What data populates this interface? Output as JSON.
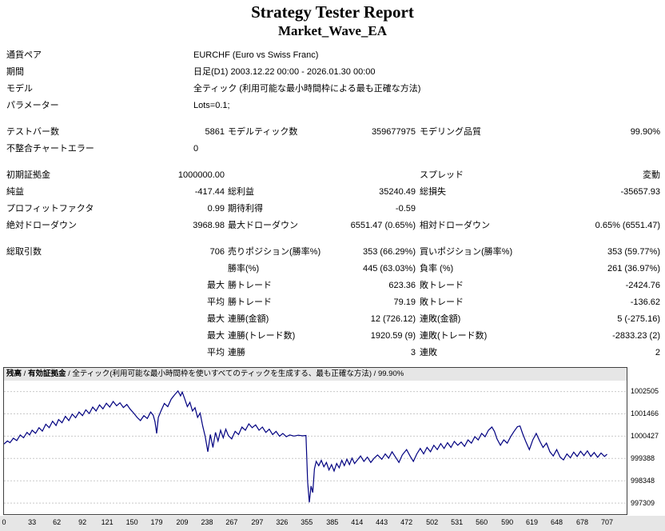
{
  "report": {
    "title": "Strategy Tester Report",
    "subtitle": "Market_Wave_EA",
    "rows": [
      {
        "cells": [
          {
            "s": "l1",
            "t": "通貨ペア"
          },
          {
            "s": "wide",
            "t": "EURCHF (Euro vs Swiss Franc)"
          }
        ]
      },
      {
        "cells": [
          {
            "s": "l1",
            "t": "期間"
          },
          {
            "s": "wide",
            "t": "日足(D1) 2003.12.22 00:00 - 2026.01.30 00:00"
          }
        ]
      },
      {
        "cells": [
          {
            "s": "l1",
            "t": "モデル"
          },
          {
            "s": "wide",
            "t": "全ティック (利用可能な最小時間枠による最も正確な方法)"
          }
        ]
      },
      {
        "cells": [
          {
            "s": "l1",
            "t": "パラメーター"
          },
          {
            "s": "wide",
            "t": "Lots=0.1;"
          }
        ],
        "gap_after": true
      },
      {
        "cells": [
          {
            "s": "l1",
            "t": "テストバー数"
          },
          {
            "s": "v1",
            "t": "5861"
          },
          {
            "s": "l2",
            "t": "モデルティック数"
          },
          {
            "s": "v2",
            "t": "359677975"
          },
          {
            "s": "l3",
            "t": "モデリング品質"
          },
          {
            "s": "v3",
            "t": "99.90%"
          }
        ]
      },
      {
        "cells": [
          {
            "s": "l1",
            "t": "不整合チャートエラー"
          },
          {
            "s": "wide",
            "t": "0"
          }
        ],
        "gap_after": true
      },
      {
        "cells": [
          {
            "s": "l1",
            "t": "初期証拠金"
          },
          {
            "s": "v1",
            "t": "1000000.00"
          },
          {
            "s": "l3",
            "t": "スプレッド"
          },
          {
            "s": "v3",
            "t": "変動"
          }
        ]
      },
      {
        "cells": [
          {
            "s": "l1",
            "t": "純益"
          },
          {
            "s": "v1",
            "t": "-417.44"
          },
          {
            "s": "l2",
            "t": "総利益"
          },
          {
            "s": "v2",
            "t": "35240.49"
          },
          {
            "s": "l3",
            "t": "総損失"
          },
          {
            "s": "v3",
            "t": "-35657.93"
          }
        ]
      },
      {
        "cells": [
          {
            "s": "l1",
            "t": "プロフィットファクタ"
          },
          {
            "s": "v1",
            "t": "0.99"
          },
          {
            "s": "l2",
            "t": "期待利得"
          },
          {
            "s": "v2",
            "t": "-0.59"
          }
        ]
      },
      {
        "cells": [
          {
            "s": "l1",
            "t": "絶対ドローダウン"
          },
          {
            "s": "v1",
            "t": "3968.98"
          },
          {
            "s": "l2",
            "t": "最大ドローダウン"
          },
          {
            "s": "v2",
            "t": "6551.47 (0.65%)"
          },
          {
            "s": "l3",
            "t": "相対ドローダウン"
          },
          {
            "s": "v3",
            "t": "0.65% (6551.47)"
          }
        ],
        "gap_after": true
      },
      {
        "cells": [
          {
            "s": "l1",
            "t": "総取引数"
          },
          {
            "s": "v1",
            "t": "706"
          },
          {
            "s": "l2",
            "t": "売りポジション(勝率%)"
          },
          {
            "s": "v2",
            "t": "353 (66.29%)"
          },
          {
            "s": "l3",
            "t": "買いポジション(勝率%)"
          },
          {
            "s": "v3",
            "t": "353 (59.77%)"
          }
        ]
      },
      {
        "cells": [
          {
            "s": "l2",
            "t": "勝率(%)"
          },
          {
            "s": "v2",
            "t": "445 (63.03%)"
          },
          {
            "s": "l3",
            "t": "負率 (%)"
          },
          {
            "s": "v3",
            "t": "261 (36.97%)"
          }
        ]
      },
      {
        "cells": [
          {
            "s": "v1",
            "t": "最大"
          },
          {
            "s": "l2",
            "t": "勝トレード"
          },
          {
            "s": "v2",
            "t": "623.36"
          },
          {
            "s": "l3",
            "t": "敗トレード"
          },
          {
            "s": "v3",
            "t": "-2424.76"
          }
        ]
      },
      {
        "cells": [
          {
            "s": "v1",
            "t": "平均"
          },
          {
            "s": "l2",
            "t": "勝トレード"
          },
          {
            "s": "v2",
            "t": "79.19"
          },
          {
            "s": "l3",
            "t": "敗トレード"
          },
          {
            "s": "v3",
            "t": "-136.62"
          }
        ]
      },
      {
        "cells": [
          {
            "s": "v1",
            "t": "最大"
          },
          {
            "s": "l2",
            "t": "連勝(金額)"
          },
          {
            "s": "v2",
            "t": "12 (726.12)"
          },
          {
            "s": "l3",
            "t": "連敗(金額)"
          },
          {
            "s": "v3",
            "t": "5 (-275.16)"
          }
        ]
      },
      {
        "cells": [
          {
            "s": "v1",
            "t": "最大"
          },
          {
            "s": "l2",
            "t": "連勝(トレード数)"
          },
          {
            "s": "v2",
            "t": "1920.59 (9)"
          },
          {
            "s": "l3",
            "t": "連敗(トレード数)"
          },
          {
            "s": "v3",
            "t": "-2833.23 (2)"
          }
        ]
      },
      {
        "cells": [
          {
            "s": "v1",
            "t": "平均"
          },
          {
            "s": "l2",
            "t": "連勝"
          },
          {
            "s": "v2",
            "t": "3"
          },
          {
            "s": "l3",
            "t": "連敗"
          },
          {
            "s": "v3",
            "t": "2"
          }
        ]
      }
    ]
  },
  "chart_data": {
    "type": "line",
    "title": "",
    "xlabel": "",
    "ylabel": "",
    "legend": {
      "balance": "残高",
      "equity": "有効証拠金",
      "method": "全ティック(利用可能な最小時間枠を使いすべてのティックを生成する、最も正確な方法)",
      "quality": "99.90%",
      "sep": " / "
    },
    "colors": {
      "balance_line": "#000080",
      "balance_label": "#000080",
      "equity_label": "#007f00",
      "grid": "#c9c9c9",
      "frame": "#404040",
      "strip_bg": "#e6e6e6"
    },
    "xlim": [
      0,
      730
    ],
    "ylim": [
      996790,
      1003010
    ],
    "x_ticks": [
      0,
      33,
      62,
      92,
      121,
      150,
      179,
      209,
      238,
      267,
      297,
      326,
      355,
      385,
      414,
      443,
      472,
      502,
      531,
      560,
      590,
      619,
      648,
      678,
      707
    ],
    "y_ticks": [
      1002505,
      1001466,
      1000427,
      999388,
      998348,
      997309
    ],
    "series": [
      {
        "name": "残高",
        "color": "#000080",
        "points": [
          [
            0,
            1000060
          ],
          [
            4,
            1000200
          ],
          [
            7,
            1000120
          ],
          [
            11,
            1000330
          ],
          [
            15,
            1000220
          ],
          [
            19,
            1000480
          ],
          [
            23,
            1000350
          ],
          [
            27,
            1000600
          ],
          [
            30,
            1000480
          ],
          [
            33,
            1000700
          ],
          [
            37,
            1000560
          ],
          [
            41,
            1000820
          ],
          [
            45,
            1000660
          ],
          [
            49,
            1000980
          ],
          [
            53,
            1000820
          ],
          [
            57,
            1001120
          ],
          [
            61,
            1000920
          ],
          [
            64,
            1001200
          ],
          [
            68,
            1001050
          ],
          [
            72,
            1001350
          ],
          [
            76,
            1001150
          ],
          [
            80,
            1001450
          ],
          [
            84,
            1001280
          ],
          [
            88,
            1001550
          ],
          [
            92,
            1001380
          ],
          [
            96,
            1001650
          ],
          [
            100,
            1001480
          ],
          [
            104,
            1001780
          ],
          [
            108,
            1001600
          ],
          [
            112,
            1001880
          ],
          [
            116,
            1001700
          ],
          [
            120,
            1001960
          ],
          [
            124,
            1001780
          ],
          [
            128,
            1002040
          ],
          [
            132,
            1001840
          ],
          [
            136,
            1001980
          ],
          [
            140,
            1001760
          ],
          [
            144,
            1001900
          ],
          [
            148,
            1001680
          ],
          [
            152,
            1001500
          ],
          [
            156,
            1001300
          ],
          [
            160,
            1001150
          ],
          [
            164,
            1001380
          ],
          [
            168,
            1001250
          ],
          [
            172,
            1001550
          ],
          [
            175,
            1001400
          ],
          [
            177,
            1001100
          ],
          [
            179,
            1000550
          ],
          [
            181,
            1001300
          ],
          [
            184,
            1001600
          ],
          [
            188,
            1001950
          ],
          [
            192,
            1001800
          ],
          [
            196,
            1002150
          ],
          [
            200,
            1002350
          ],
          [
            204,
            1002530
          ],
          [
            207,
            1002300
          ],
          [
            209,
            1002480
          ],
          [
            212,
            1002150
          ],
          [
            215,
            1001800
          ],
          [
            218,
            1002000
          ],
          [
            221,
            1001600
          ],
          [
            224,
            1001750
          ],
          [
            227,
            1001300
          ],
          [
            230,
            1001500
          ],
          [
            233,
            1000900
          ],
          [
            236,
            1000400
          ],
          [
            239,
            999700
          ],
          [
            242,
            1000500
          ],
          [
            245,
            999900
          ],
          [
            248,
            1000600
          ],
          [
            251,
            1000200
          ],
          [
            254,
            1000700
          ],
          [
            257,
            1000350
          ],
          [
            260,
            1000750
          ],
          [
            263,
            1000450
          ],
          [
            267,
            1000300
          ],
          [
            271,
            1000650
          ],
          [
            275,
            1000500
          ],
          [
            279,
            1000850
          ],
          [
            283,
            1000700
          ],
          [
            287,
            1001000
          ],
          [
            291,
            1000820
          ],
          [
            295,
            1000950
          ],
          [
            299,
            1000700
          ],
          [
            303,
            1000850
          ],
          [
            307,
            1000600
          ],
          [
            311,
            1000750
          ],
          [
            315,
            1000500
          ],
          [
            319,
            1000650
          ],
          [
            323,
            1000420
          ],
          [
            327,
            1000550
          ],
          [
            331,
            1000400
          ],
          [
            335,
            1000480
          ],
          [
            340,
            1000430
          ],
          [
            345,
            1000470
          ],
          [
            350,
            1000440
          ],
          [
            354,
            1000460
          ],
          [
            356,
            998300
          ],
          [
            358,
            997340
          ],
          [
            360,
            998100
          ],
          [
            362,
            997800
          ],
          [
            364,
            998900
          ],
          [
            366,
            999250
          ],
          [
            369,
            999050
          ],
          [
            372,
            999300
          ],
          [
            375,
            999000
          ],
          [
            378,
            999200
          ],
          [
            381,
            998850
          ],
          [
            384,
            999100
          ],
          [
            387,
            998800
          ],
          [
            390,
            999150
          ],
          [
            393,
            998950
          ],
          [
            396,
            999300
          ],
          [
            399,
            999050
          ],
          [
            402,
            999350
          ],
          [
            405,
            999100
          ],
          [
            408,
            999400
          ],
          [
            411,
            999150
          ],
          [
            414,
            999300
          ],
          [
            418,
            999500
          ],
          [
            422,
            999250
          ],
          [
            426,
            999450
          ],
          [
            430,
            999200
          ],
          [
            434,
            999400
          ],
          [
            438,
            999550
          ],
          [
            443,
            999350
          ],
          [
            447,
            999600
          ],
          [
            451,
            999400
          ],
          [
            455,
            999700
          ],
          [
            459,
            999450
          ],
          [
            463,
            999200
          ],
          [
            467,
            999550
          ],
          [
            472,
            999800
          ],
          [
            476,
            999500
          ],
          [
            480,
            999250
          ],
          [
            484,
            999600
          ],
          [
            488,
            999850
          ],
          [
            492,
            999600
          ],
          [
            496,
            999900
          ],
          [
            500,
            999700
          ],
          [
            504,
            1000000
          ],
          [
            508,
            999800
          ],
          [
            512,
            1000080
          ],
          [
            516,
            999850
          ],
          [
            520,
            1000120
          ],
          [
            524,
            999900
          ],
          [
            528,
            1000180
          ],
          [
            532,
            1000000
          ],
          [
            536,
            1000150
          ],
          [
            540,
            999950
          ],
          [
            544,
            1000250
          ],
          [
            548,
            1000100
          ],
          [
            552,
            1000400
          ],
          [
            556,
            1000250
          ],
          [
            560,
            1000550
          ],
          [
            564,
            1000400
          ],
          [
            568,
            1000700
          ],
          [
            572,
            1000850
          ],
          [
            575,
            1000650
          ],
          [
            578,
            1000300
          ],
          [
            582,
            1000000
          ],
          [
            586,
            1000250
          ],
          [
            590,
            1000100
          ],
          [
            594,
            1000400
          ],
          [
            598,
            1000650
          ],
          [
            602,
            1000870
          ],
          [
            605,
            1000900
          ],
          [
            608,
            1000550
          ],
          [
            612,
            1000150
          ],
          [
            616,
            999800
          ],
          [
            620,
            1000250
          ],
          [
            624,
            1000550
          ],
          [
            628,
            1000200
          ],
          [
            632,
            999900
          ],
          [
            636,
            1000100
          ],
          [
            640,
            999700
          ],
          [
            644,
            999500
          ],
          [
            648,
            999800
          ],
          [
            652,
            999450
          ],
          [
            656,
            999320
          ],
          [
            660,
            999600
          ],
          [
            664,
            999420
          ],
          [
            668,
            999680
          ],
          [
            672,
            999480
          ],
          [
            676,
            999720
          ],
          [
            680,
            999520
          ],
          [
            684,
            999740
          ],
          [
            688,
            999480
          ],
          [
            692,
            999660
          ],
          [
            696,
            999440
          ],
          [
            700,
            999640
          ],
          [
            704,
            999480
          ],
          [
            707,
            999583
          ]
        ]
      }
    ]
  }
}
